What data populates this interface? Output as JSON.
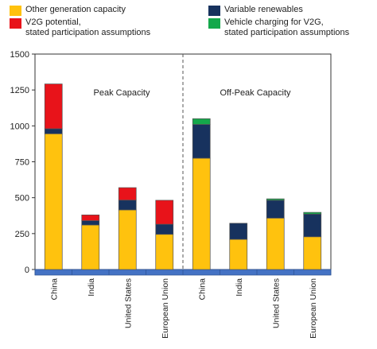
{
  "legend": [
    {
      "key": "other",
      "line1": "Other generation capacity",
      "line2": "",
      "color": "#FFC20E"
    },
    {
      "key": "v2g",
      "line1": "V2G potential,",
      "line2": "stated participation assumptions",
      "color": "#E8131A"
    },
    {
      "key": "renew",
      "line1": "Variable renewables",
      "line2": "",
      "color": "#17325E"
    },
    {
      "key": "charging",
      "line1": "Vehicle charging for V2G,",
      "line2": "stated participation assumptions",
      "color": "#14A84B"
    }
  ],
  "chart_data": {
    "type": "bar",
    "stacked": true,
    "panels": [
      "Peak Capacity",
      "Off-Peak Capacity"
    ],
    "categories": [
      "China",
      "India",
      "United States",
      "European Union",
      "China",
      "India",
      "United States",
      "European Union"
    ],
    "series": [
      {
        "name": "Other generation capacity",
        "color": "#FFC20E",
        "values": [
          945,
          310,
          415,
          245,
          775,
          210,
          358,
          228
        ]
      },
      {
        "name": "Variable renewables",
        "color": "#17325E",
        "values": [
          35,
          30,
          68,
          70,
          235,
          112,
          124,
          158
        ]
      },
      {
        "name": "V2G potential, stated participation assumptions",
        "color": "#E8131A",
        "values": [
          312,
          40,
          87,
          167,
          0,
          0,
          0,
          0
        ]
      },
      {
        "name": "Vehicle charging for V2G, stated participation assumptions",
        "color": "#14A84B",
        "values": [
          0,
          0,
          0,
          0,
          40,
          0,
          10,
          12
        ]
      }
    ],
    "yticks": [
      0,
      250,
      500,
      750,
      1000,
      1250,
      1500
    ],
    "ylim": [
      0,
      1500
    ],
    "grid": false,
    "legend_position": "top"
  }
}
